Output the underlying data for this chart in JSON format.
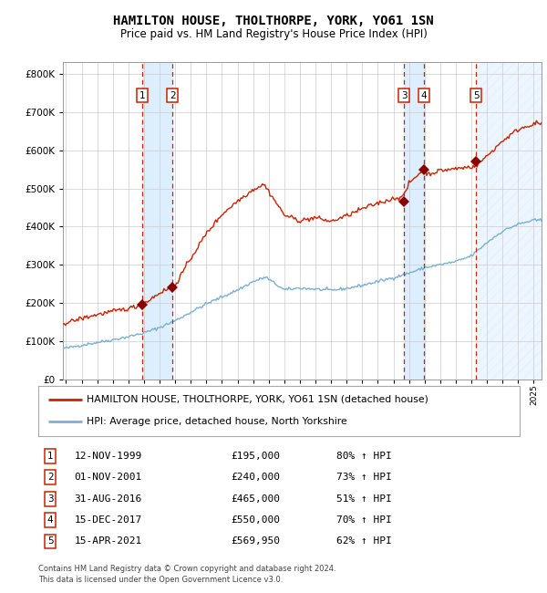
{
  "title": "HAMILTON HOUSE, THOLTHORPE, YORK, YO61 1SN",
  "subtitle": "Price paid vs. HM Land Registry's House Price Index (HPI)",
  "footer1": "Contains HM Land Registry data © Crown copyright and database right 2024.",
  "footer2": "This data is licensed under the Open Government Licence v3.0.",
  "legend_line1": "HAMILTON HOUSE, THOLTHORPE, YORK, YO61 1SN (detached house)",
  "legend_line2": "HPI: Average price, detached house, North Yorkshire",
  "sales": [
    {
      "num": 1,
      "date": "12-NOV-1999",
      "price": 195000,
      "pct": "80% ↑ HPI",
      "year": 1999.87
    },
    {
      "num": 2,
      "date": "01-NOV-2001",
      "price": 240000,
      "pct": "73% ↑ HPI",
      "year": 2001.83
    },
    {
      "num": 3,
      "date": "31-AUG-2016",
      "price": 465000,
      "pct": "51% ↑ HPI",
      "year": 2016.67
    },
    {
      "num": 4,
      "date": "15-DEC-2017",
      "price": 550000,
      "pct": "70% ↑ HPI",
      "year": 2017.96
    },
    {
      "num": 5,
      "date": "15-APR-2021",
      "price": 569950,
      "pct": "62% ↑ HPI",
      "year": 2021.29
    }
  ],
  "sale_prices_str": [
    "£195,000",
    "£240,000",
    "£465,000",
    "£550,000",
    "£569,950"
  ],
  "hpi_color": "#7bafd4",
  "price_color": "#cc2200",
  "marker_color": "#880000",
  "vline_color": "#cc2200",
  "shade_color": "#ddeeff",
  "grid_color": "#cccccc",
  "background_color": "#ffffff",
  "ylim_max": 830000,
  "ytick_interval": 100000,
  "xlim_start": 1994.8,
  "xlim_end": 2025.5
}
